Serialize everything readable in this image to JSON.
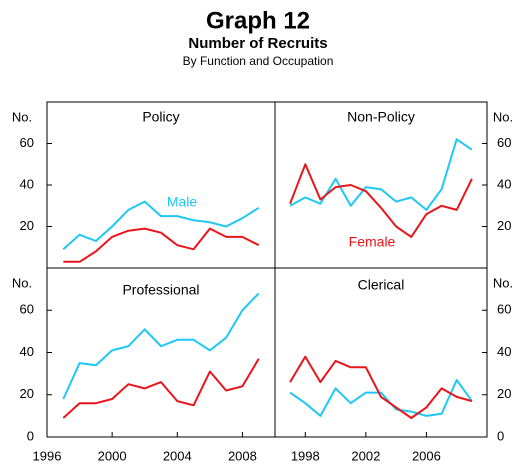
{
  "title": "Graph 12",
  "subtitle": "Number of Recruits",
  "caption": "By Function and Occupation",
  "chart_data": [
    {
      "type": "line",
      "title": "Policy",
      "ylabel": "No.",
      "x": [
        1997,
        1998,
        1999,
        2000,
        2001,
        2002,
        2003,
        2004,
        2005,
        2006,
        2007,
        2008,
        2009
      ],
      "series": [
        {
          "name": "Male",
          "color": "#1ec8f4",
          "values": [
            9,
            16,
            13,
            20,
            28,
            32,
            25,
            25,
            23,
            22,
            20,
            24,
            29
          ]
        },
        {
          "color": "#e8151b",
          "values": [
            3,
            3,
            8,
            15,
            18,
            19,
            17,
            11,
            9,
            19,
            15,
            15,
            11
          ]
        }
      ],
      "xlim": [
        1996,
        2010
      ],
      "ylim": [
        0,
        80
      ],
      "yticks": [
        20,
        40,
        60
      ]
    },
    {
      "type": "line",
      "title": "Non-Policy",
      "ylabel": "No.",
      "x": [
        1997,
        1998,
        1999,
        2000,
        2001,
        2002,
        2003,
        2004,
        2005,
        2006,
        2007,
        2008,
        2009
      ],
      "series": [
        {
          "color": "#1ec8f4",
          "values": [
            30,
            34,
            31,
            43,
            30,
            39,
            38,
            32,
            34,
            28,
            38,
            62,
            57
          ]
        },
        {
          "name": "Female",
          "color": "#e8151b",
          "values": [
            31,
            50,
            33,
            39,
            40,
            37,
            29,
            20,
            15,
            26,
            30,
            28,
            43
          ]
        }
      ],
      "xlim": [
        1996,
        2010
      ],
      "ylim": [
        0,
        80
      ],
      "yticks": [
        20,
        40,
        60
      ]
    },
    {
      "type": "line",
      "title": "Professional",
      "ylabel": "No.",
      "x": [
        1997,
        1998,
        1999,
        2000,
        2001,
        2002,
        2003,
        2004,
        2005,
        2006,
        2007,
        2008,
        2009
      ],
      "series": [
        {
          "color": "#1ec8f4",
          "values": [
            18,
            35,
            34,
            41,
            43,
            51,
            43,
            46,
            46,
            41,
            47,
            60,
            68
          ]
        },
        {
          "color": "#e8151b",
          "values": [
            9,
            16,
            16,
            18,
            25,
            23,
            26,
            17,
            15,
            31,
            22,
            24,
            37
          ]
        }
      ],
      "xlim": [
        1996,
        2010
      ],
      "ylim": [
        0,
        80
      ],
      "xticks": [
        1996,
        2000,
        2004,
        2008
      ],
      "yticks": [
        0,
        20,
        40,
        60
      ]
    },
    {
      "type": "line",
      "title": "Clerical",
      "ylabel": "No.",
      "x": [
        1997,
        1998,
        1999,
        2000,
        2001,
        2002,
        2003,
        2004,
        2005,
        2006,
        2007,
        2008,
        2009
      ],
      "series": [
        {
          "color": "#1ec8f4",
          "values": [
            21,
            16,
            10,
            23,
            16,
            21,
            21,
            13,
            12,
            10,
            11,
            27,
            17
          ]
        },
        {
          "color": "#e8151b",
          "values": [
            26,
            38,
            26,
            36,
            33,
            33,
            19,
            14,
            9,
            14,
            23,
            19,
            17
          ]
        }
      ],
      "xlim": [
        1996,
        2010
      ],
      "ylim": [
        0,
        80
      ],
      "xticks": [
        1998,
        2002,
        2006
      ],
      "yticks": [
        0,
        20,
        40,
        60
      ]
    }
  ]
}
